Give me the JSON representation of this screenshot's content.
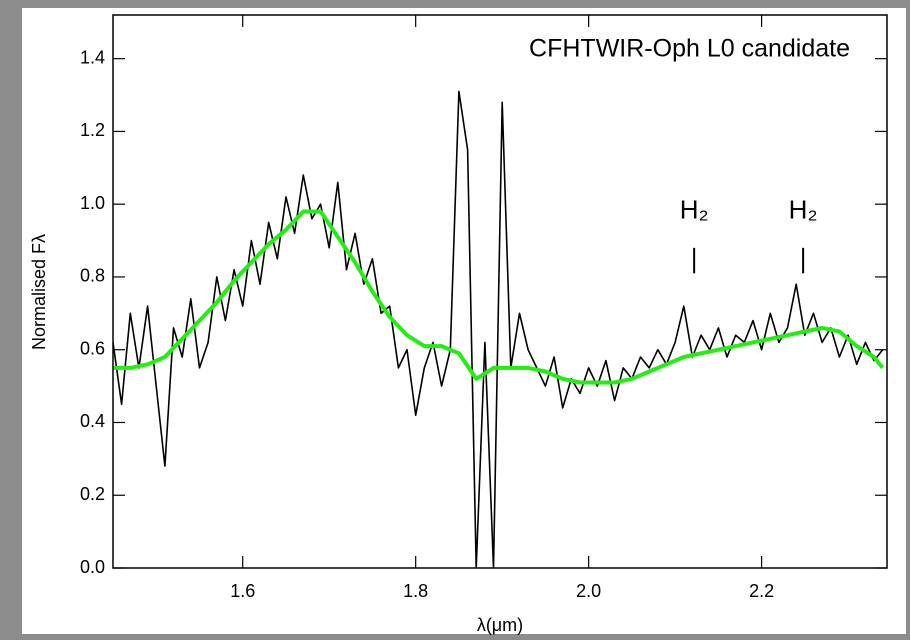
{
  "chart_data": {
    "type": "line",
    "title": "CFHTWIR-Oph  L0  candidate",
    "xlabel": "λ(μm)",
    "ylabel": "Normalised Fλ",
    "xlim": [
      1.45,
      2.345
    ],
    "ylim": [
      0,
      1.52
    ],
    "xticks": [
      1.6,
      1.8,
      {
        "value": 2,
        "label": "2.0"
      },
      2.2
    ],
    "yticks": [
      {
        "value": 0,
        "label": "0.0"
      },
      0.2,
      0.4,
      0.6,
      0.8,
      {
        "value": 1,
        "label": "1.0"
      },
      1.2,
      1.4
    ],
    "annotations": [
      {
        "text": "H₂",
        "x": 2.122
      },
      {
        "text": "H₂",
        "x": 2.248
      }
    ],
    "series": [
      {
        "color": "#000000",
        "x": [
          1.45,
          1.46,
          1.47,
          1.48,
          1.49,
          1.5,
          1.51,
          1.52,
          1.53,
          1.54,
          1.55,
          1.56,
          1.57,
          1.58,
          1.59,
          1.6,
          1.61,
          1.62,
          1.63,
          1.64,
          1.65,
          1.66,
          1.67,
          1.68,
          1.69,
          1.7,
          1.71,
          1.72,
          1.73,
          1.74,
          1.75,
          1.76,
          1.77,
          1.78,
          1.79,
          1.8,
          1.81,
          1.82,
          1.83,
          1.84,
          1.85,
          1.86,
          1.87,
          1.88,
          1.89,
          1.9,
          1.91,
          1.92,
          1.93,
          1.94,
          1.95,
          1.96,
          1.97,
          1.98,
          1.99,
          2.0,
          2.01,
          2.02,
          2.03,
          2.04,
          2.05,
          2.06,
          2.07,
          2.08,
          2.09,
          2.1,
          2.11,
          2.12,
          2.13,
          2.14,
          2.15,
          2.16,
          2.17,
          2.18,
          2.19,
          2.2,
          2.21,
          2.22,
          2.23,
          2.24,
          2.25,
          2.26,
          2.27,
          2.28,
          2.29,
          2.3,
          2.31,
          2.32,
          2.33,
          2.34
        ],
        "values": [
          0.62,
          0.45,
          0.7,
          0.55,
          0.72,
          0.5,
          0.28,
          0.66,
          0.58,
          0.74,
          0.55,
          0.62,
          0.8,
          0.68,
          0.82,
          0.72,
          0.9,
          0.78,
          0.95,
          0.85,
          1.02,
          0.92,
          1.08,
          0.96,
          1.0,
          0.88,
          1.06,
          0.82,
          0.92,
          0.78,
          0.85,
          0.7,
          0.72,
          0.55,
          0.6,
          0.42,
          0.55,
          0.62,
          0.5,
          0.6,
          1.31,
          1.15,
          0.0,
          0.62,
          0.0,
          1.28,
          0.55,
          0.7,
          0.6,
          0.55,
          0.5,
          0.58,
          0.44,
          0.52,
          0.48,
          0.55,
          0.5,
          0.57,
          0.46,
          0.55,
          0.52,
          0.58,
          0.55,
          0.6,
          0.56,
          0.62,
          0.72,
          0.58,
          0.64,
          0.6,
          0.66,
          0.58,
          0.64,
          0.62,
          0.68,
          0.6,
          0.7,
          0.62,
          0.66,
          0.78,
          0.64,
          0.7,
          0.62,
          0.66,
          0.58,
          0.64,
          0.56,
          0.62,
          0.57,
          0.6
        ]
      },
      {
        "color": "#22ee11",
        "x": [
          1.45,
          1.47,
          1.49,
          1.51,
          1.53,
          1.55,
          1.57,
          1.59,
          1.61,
          1.63,
          1.65,
          1.67,
          1.69,
          1.71,
          1.73,
          1.75,
          1.77,
          1.79,
          1.81,
          1.83,
          1.85,
          1.87,
          1.89,
          1.91,
          1.93,
          1.95,
          1.97,
          1.99,
          2.01,
          2.03,
          2.05,
          2.07,
          2.09,
          2.11,
          2.13,
          2.15,
          2.17,
          2.19,
          2.21,
          2.23,
          2.25,
          2.27,
          2.29,
          2.31,
          2.33,
          2.34
        ],
        "values": [
          0.55,
          0.55,
          0.56,
          0.58,
          0.63,
          0.68,
          0.73,
          0.79,
          0.84,
          0.89,
          0.93,
          0.98,
          0.98,
          0.91,
          0.84,
          0.76,
          0.69,
          0.64,
          0.61,
          0.61,
          0.59,
          0.52,
          0.55,
          0.55,
          0.55,
          0.54,
          0.52,
          0.51,
          0.51,
          0.51,
          0.52,
          0.54,
          0.56,
          0.58,
          0.59,
          0.6,
          0.61,
          0.62,
          0.63,
          0.64,
          0.65,
          0.66,
          0.65,
          0.61,
          0.58,
          0.55
        ]
      }
    ]
  }
}
